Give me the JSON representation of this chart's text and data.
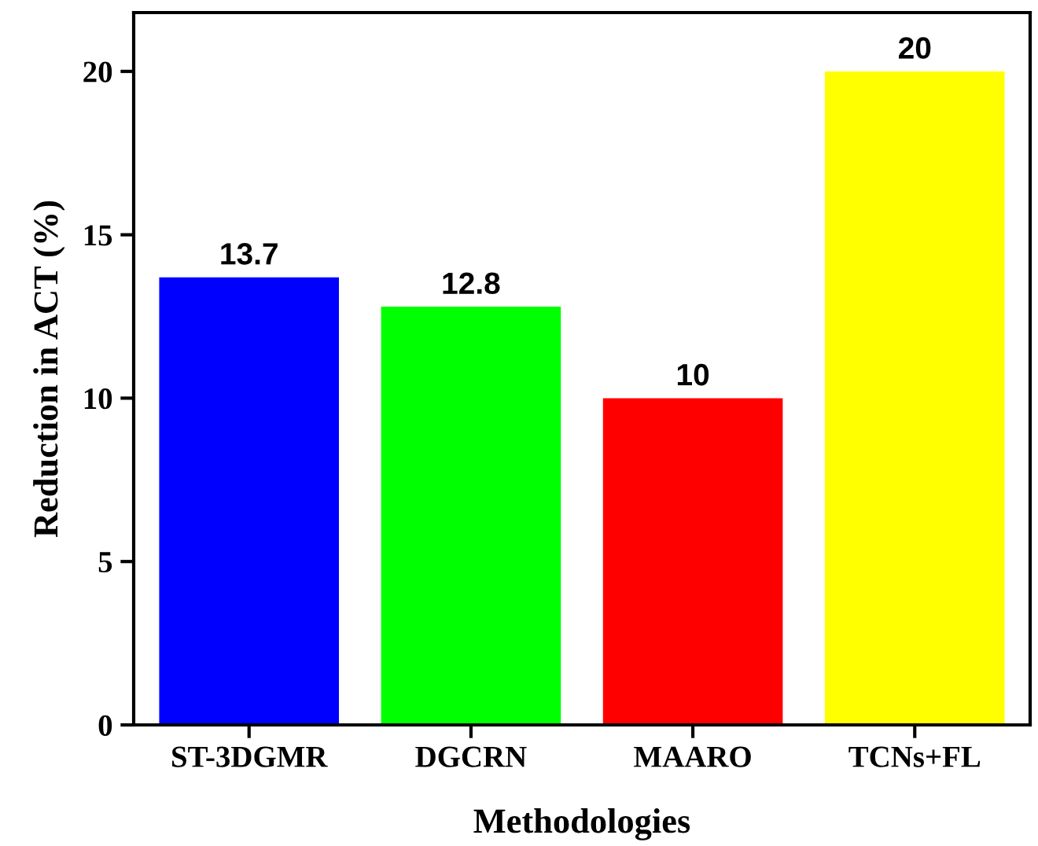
{
  "chart_data": {
    "type": "bar",
    "xlabel": "Methodologies",
    "ylabel": "Reduction in ACT (%)",
    "categories": [
      "ST-3DGMR",
      "DGCRN",
      "MAARO",
      "TCNs+FL"
    ],
    "values": [
      13.7,
      12.8,
      10,
      20
    ],
    "colors": [
      "#0000ff",
      "#00ff00",
      "#ff0000",
      "#ffff00"
    ],
    "ylim": [
      0,
      21.8
    ],
    "yticks": [
      0,
      5,
      10,
      15,
      20
    ],
    "data_labels": true,
    "grid": false
  }
}
